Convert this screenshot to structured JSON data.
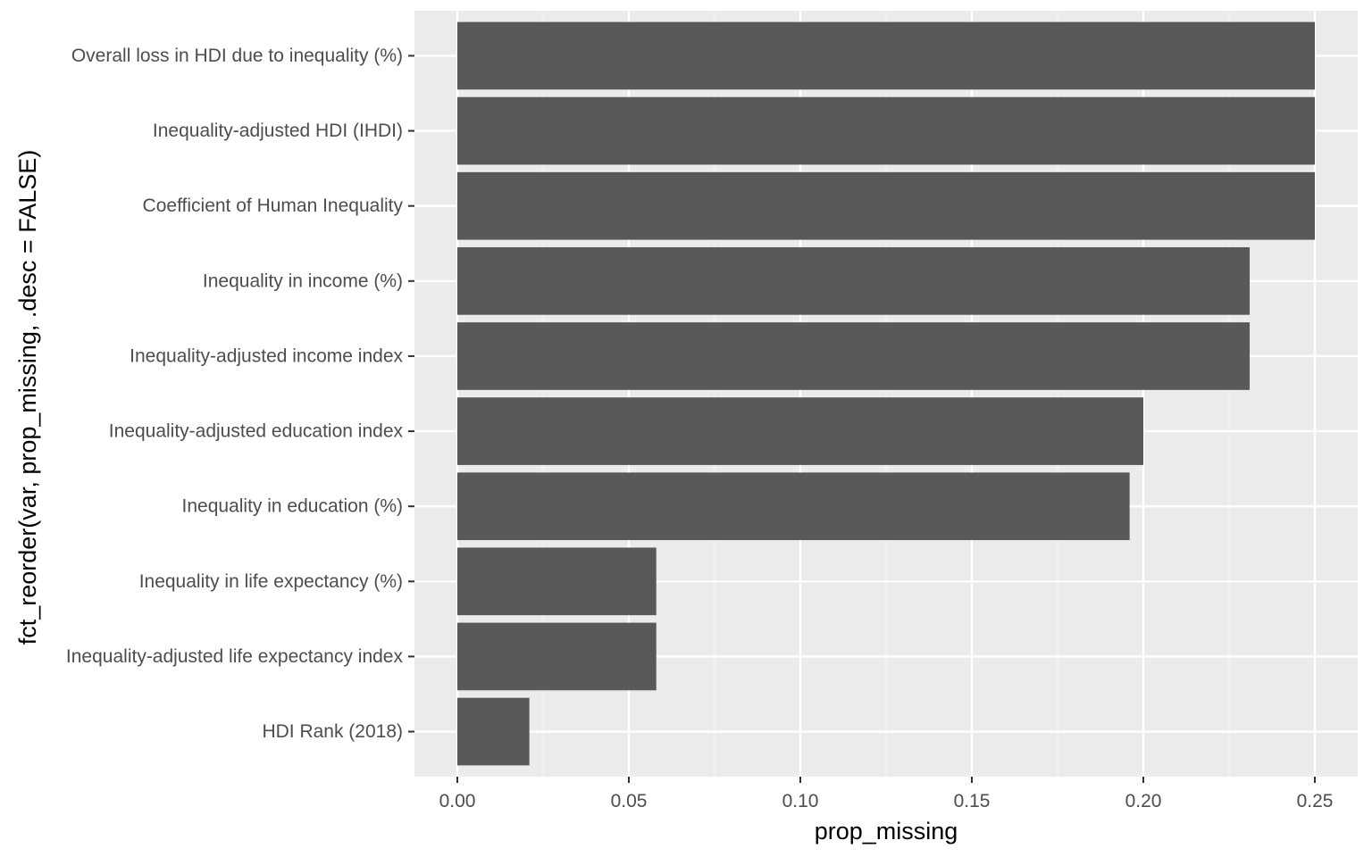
{
  "chart_data": {
    "type": "bar",
    "orientation": "horizontal",
    "xlabel": "prop_missing",
    "ylabel": "fct_reorder(var, prop_missing, .desc = FALSE)",
    "xlim": [
      -0.0125,
      0.2625
    ],
    "x_ticks": [
      0.0,
      0.05,
      0.1,
      0.15,
      0.2,
      0.25
    ],
    "x_tick_labels": [
      "0.00",
      "0.05",
      "0.10",
      "0.15",
      "0.20",
      "0.25"
    ],
    "categories": [
      "Overall loss in HDI due to inequality (%)",
      "Inequality-adjusted HDI (IHDI)",
      "Coefficient of Human Inequality",
      "Inequality in income (%)",
      "Inequality-adjusted income index",
      "Inequality-adjusted education index",
      "Inequality in education (%)",
      "Inequality in life expectancy (%)",
      "Inequality-adjusted life expectancy index",
      "HDI Rank (2018)"
    ],
    "values": [
      0.25,
      0.25,
      0.25,
      0.231,
      0.231,
      0.2,
      0.196,
      0.058,
      0.058,
      0.021
    ],
    "grid": true,
    "colors": {
      "panel_background": "#ebebeb",
      "grid_major": "#ffffff",
      "grid_minor": "#f5f5f5",
      "bar_fill": "#595959",
      "tick_text": "#4d4d4d",
      "axis_title": "#000000"
    }
  }
}
